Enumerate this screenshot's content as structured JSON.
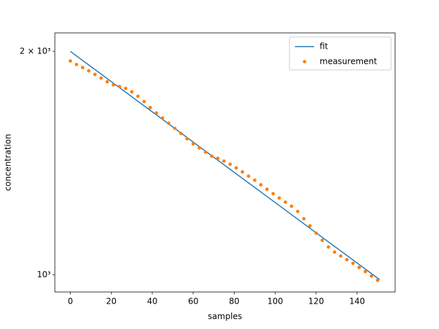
{
  "chart_data": {
    "type": "line",
    "yscale": "log",
    "xlabel": "samples",
    "ylabel": "concentration",
    "xlim": [
      -7.55,
      158.55
    ],
    "xticks": [
      0,
      20,
      40,
      60,
      80,
      100,
      120,
      140
    ],
    "ylim": [
      948,
      2118
    ],
    "yticks": [
      {
        "value": 1000,
        "label": "10³"
      },
      {
        "value": 2000,
        "label": "2 × 10³"
      }
    ],
    "legend": "upper right",
    "series": [
      {
        "name": "fit",
        "kind": "line",
        "color": "#1f77b4",
        "x": [
          0,
          151
        ],
        "values": [
          2000,
          985
        ]
      },
      {
        "name": "measurement",
        "kind": "scatter",
        "color": "#ff7f0e",
        "x": [
          0,
          3,
          6,
          9,
          12,
          15,
          18,
          21,
          24,
          27,
          30,
          33,
          36,
          39,
          42,
          45,
          48,
          51,
          54,
          57,
          60,
          63,
          66,
          69,
          72,
          75,
          78,
          81,
          84,
          87,
          90,
          93,
          96,
          99,
          102,
          105,
          108,
          111,
          114,
          117,
          120,
          123,
          126,
          129,
          132,
          135,
          138,
          141,
          144,
          147,
          150
        ],
        "values": [
          1941,
          1920,
          1902,
          1883,
          1862,
          1841,
          1820,
          1803,
          1793,
          1783,
          1764,
          1740,
          1712,
          1680,
          1652,
          1626,
          1600,
          1575,
          1550,
          1525,
          1501,
          1482,
          1463,
          1445,
          1435,
          1423,
          1409,
          1393,
          1376,
          1358,
          1341,
          1322,
          1304,
          1286,
          1269,
          1253,
          1237,
          1217,
          1190,
          1164,
          1138,
          1113,
          1090,
          1073,
          1060,
          1048,
          1036,
          1023,
          1010,
          996,
          983
        ]
      }
    ]
  }
}
